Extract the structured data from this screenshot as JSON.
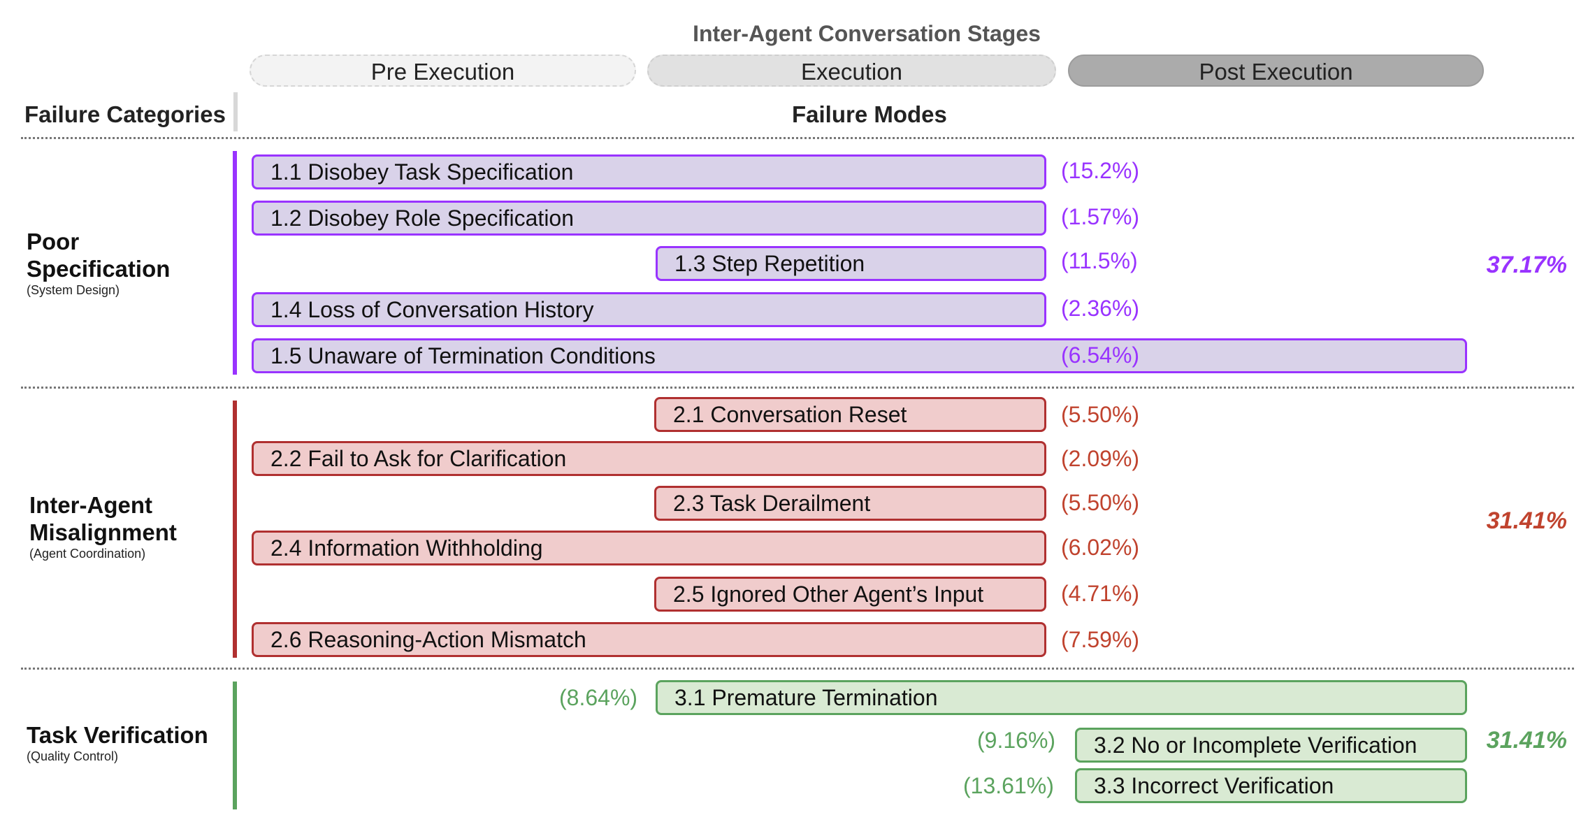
{
  "title": "Inter-Agent Conversation Stages",
  "stages": {
    "pre": "Pre Execution",
    "exec": "Execution",
    "post": "Post Execution"
  },
  "headers": {
    "categories": "Failure Categories",
    "modes": "Failure Modes"
  },
  "colors": {
    "purple": "#9933ff",
    "red": "#b03030",
    "green": "#5ba35e"
  },
  "categories": [
    {
      "name_line1": "Poor",
      "name_line2": "Specification",
      "sub": "(System Design)",
      "total": "37.17%",
      "modes": [
        {
          "label": "1.1 Disobey Task Specification",
          "pct": "(15.2%)",
          "stages": [
            "Pre Execution",
            "Execution"
          ]
        },
        {
          "label": "1.2 Disobey Role Specification",
          "pct": "(1.57%)",
          "stages": [
            "Pre Execution",
            "Execution"
          ]
        },
        {
          "label": "1.3 Step Repetition",
          "pct": "(11.5%)",
          "stages": [
            "Execution"
          ]
        },
        {
          "label": "1.4 Loss of Conversation History",
          "pct": "(2.36%)",
          "stages": [
            "Pre Execution",
            "Execution"
          ]
        },
        {
          "label": "1.5 Unaware of Termination Conditions",
          "pct": "(6.54%)",
          "stages": [
            "Pre Execution",
            "Execution",
            "Post Execution"
          ]
        }
      ]
    },
    {
      "name_line1": "Inter-Agent",
      "name_line2": "Misalignment",
      "sub": "(Agent Coordination)",
      "total": "31.41%",
      "modes": [
        {
          "label": "2.1 Conversation Reset",
          "pct": "(5.50%)",
          "stages": [
            "Execution"
          ]
        },
        {
          "label": "2.2 Fail to Ask for Clarification",
          "pct": "(2.09%)",
          "stages": [
            "Pre Execution",
            "Execution"
          ]
        },
        {
          "label": "2.3 Task Derailment",
          "pct": "(5.50%)",
          "stages": [
            "Execution"
          ]
        },
        {
          "label": "2.4 Information Withholding",
          "pct": "(6.02%)",
          "stages": [
            "Pre Execution",
            "Execution"
          ]
        },
        {
          "label": "2.5 Ignored Other Agent’s Input",
          "pct": "(4.71%)",
          "stages": [
            "Execution"
          ]
        },
        {
          "label": "2.6 Reasoning-Action Mismatch",
          "pct": "(7.59%)",
          "stages": [
            "Pre Execution",
            "Execution"
          ]
        }
      ]
    },
    {
      "name_line1": "Task Verification",
      "sub": "(Quality Control)",
      "total": "31.41%",
      "modes": [
        {
          "label": "3.1  Premature Termination",
          "pct": "(8.64%)",
          "stages": [
            "Execution",
            "Post Execution"
          ]
        },
        {
          "label": "3.2 No or Incomplete Verification",
          "pct": "(9.16%)",
          "stages": [
            "Post Execution"
          ]
        },
        {
          "label": "3.3 Incorrect Verification",
          "pct": "(13.61%)",
          "stages": [
            "Post Execution"
          ]
        }
      ]
    }
  ]
}
